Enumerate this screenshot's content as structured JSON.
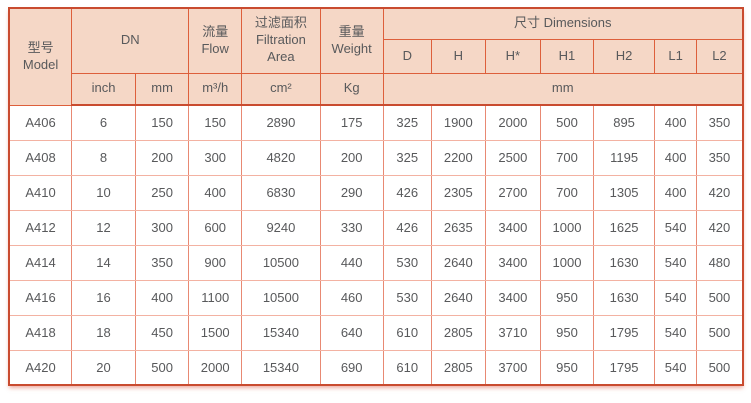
{
  "colors": {
    "page_bg": "#ffffff",
    "header_bg": "#f5d7c6",
    "border_outer": "#c94b2f",
    "border_strong": "#dd5f3b",
    "border_v": "#e88973",
    "border_h": "#f3b2a2",
    "text": "#58595b"
  },
  "chart_data": {
    "type": "table",
    "header": {
      "model_zh": "型号",
      "model_en": "Model",
      "dn": "DN",
      "flow_zh": "流量",
      "flow_en": "Flow",
      "filtration_zh": "过滤面积",
      "filtration_en1": "Filtration",
      "filtration_en2": "Area",
      "weight_zh": "重量",
      "weight_en": "Weight",
      "dimensions": "尺寸 Dimensions",
      "dim_cols": [
        "D",
        "H",
        "H*",
        "H1",
        "H2",
        "L1",
        "L2"
      ],
      "unit_inch": "inch",
      "unit_mm": "mm",
      "unit_flow": "m³/h",
      "unit_filtration": "cm²",
      "unit_weight": "Kg",
      "unit_dims": "mm"
    },
    "rows": [
      [
        "A406",
        "6",
        "150",
        "150",
        "2890",
        "175",
        "325",
        "1900",
        "2000",
        "500",
        "895",
        "400",
        "350"
      ],
      [
        "A408",
        "8",
        "200",
        "300",
        "4820",
        "200",
        "325",
        "2200",
        "2500",
        "700",
        "1195",
        "400",
        "350"
      ],
      [
        "A410",
        "10",
        "250",
        "400",
        "6830",
        "290",
        "426",
        "2305",
        "2700",
        "700",
        "1305",
        "400",
        "420"
      ],
      [
        "A412",
        "12",
        "300",
        "600",
        "9240",
        "330",
        "426",
        "2635",
        "3400",
        "1000",
        "1625",
        "540",
        "420"
      ],
      [
        "A414",
        "14",
        "350",
        "900",
        "10500",
        "440",
        "530",
        "2640",
        "3400",
        "1000",
        "1630",
        "540",
        "480"
      ],
      [
        "A416",
        "16",
        "400",
        "1100",
        "10500",
        "460",
        "530",
        "2640",
        "3400",
        "950",
        "1630",
        "540",
        "500"
      ],
      [
        "A418",
        "18",
        "450",
        "1500",
        "15340",
        "640",
        "610",
        "2805",
        "3710",
        "950",
        "1795",
        "540",
        "500"
      ],
      [
        "A420",
        "20",
        "500",
        "2000",
        "15340",
        "690",
        "610",
        "2805",
        "3700",
        "950",
        "1795",
        "540",
        "500"
      ]
    ]
  }
}
